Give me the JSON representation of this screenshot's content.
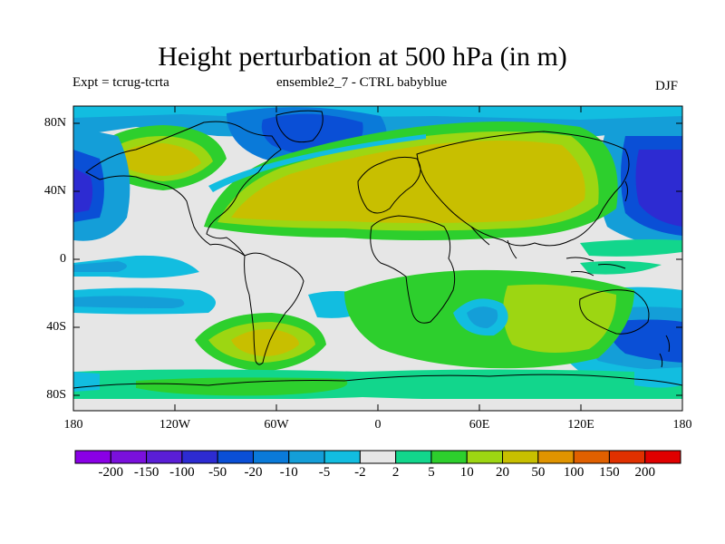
{
  "header": {
    "title": "Height perturbation at 500 hPa (in m)",
    "expt": "Expt = tcrug-tcrta",
    "ensemble": "ensemble2_7 - CTRL babyblue",
    "season": "DJF"
  },
  "map": {
    "lat_ticks": [
      "80N",
      "40N",
      "0",
      "40S",
      "80S"
    ],
    "lon_ticks": [
      "180",
      "120W",
      "60W",
      "0",
      "60E",
      "120E",
      "180"
    ],
    "background_color": "#e6e6e6"
  },
  "colorbar": {
    "labels": [
      "-200",
      "-150",
      "-100",
      "-50",
      "-20",
      "-10",
      "-5",
      "-2",
      "2",
      "5",
      "10",
      "20",
      "50",
      "100",
      "150",
      "200"
    ],
    "colors": [
      "#8a00e6",
      "#7a10dc",
      "#5a1ed6",
      "#2d2bd2",
      "#0a4fd6",
      "#0a7ad9",
      "#149ed8",
      "#12bde0",
      "#e6e6e6",
      "#12d68c",
      "#2dcf2d",
      "#9dd612",
      "#c8bf00",
      "#e09400",
      "#e06000",
      "#e03000",
      "#e00000"
    ]
  }
}
